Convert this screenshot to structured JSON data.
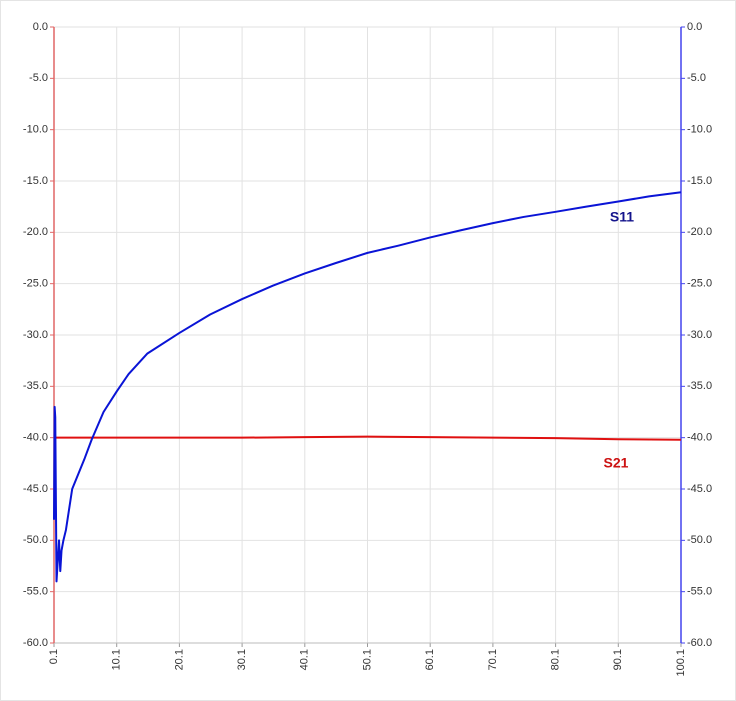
{
  "chart_data": {
    "type": "line",
    "series": [
      {
        "name": "S11",
        "color": "#0a14d6",
        "label_color": "#14148c",
        "axis": "y2",
        "x": [
          0.1,
          0.2,
          0.3,
          0.5,
          0.7,
          0.9,
          1.1,
          1.3,
          1.6,
          2,
          2.5,
          3,
          4,
          5,
          6.1,
          8,
          10.1,
          12,
          15,
          20.1,
          25,
          30.1,
          35,
          40.1,
          45,
          50.1,
          55,
          60.1,
          65,
          70.1,
          75,
          80.1,
          85,
          90.1,
          95,
          100.1
        ],
        "values": [
          -48,
          -37,
          -38,
          -54,
          -52,
          -50,
          -53,
          -51,
          -50,
          -49,
          -47,
          -45,
          -43.5,
          -42,
          -40.2,
          -37.5,
          -35.5,
          -33.8,
          -31.8,
          -29.8,
          -28,
          -26.5,
          -25.2,
          -24,
          -23,
          -22,
          -21.3,
          -20.5,
          -19.8,
          -19.1,
          -18.5,
          -18,
          -17.5,
          -17,
          -16.5,
          -16.1
        ]
      },
      {
        "name": "S21",
        "color": "#e01010",
        "label_color": "#cc1111",
        "x": [
          0.1,
          10.1,
          20.1,
          30.1,
          40.1,
          50.1,
          60.1,
          70.1,
          80.1,
          90.1,
          100.1
        ],
        "values": [
          -40,
          -40,
          -40,
          -40,
          -39.95,
          -39.9,
          -39.95,
          -40,
          -40.05,
          -40.15,
          -40.2
        ]
      }
    ],
    "xlim": [
      0.1,
      100.1
    ],
    "xticks": [
      0.1,
      10.1,
      20.1,
      30.1,
      40.1,
      50.1,
      60.1,
      70.1,
      80.1,
      90.1,
      100.1
    ],
    "ylim": [
      -60,
      0
    ],
    "yticks": [
      {
        "value": 0,
        "label": "0.0"
      },
      {
        "value": -5,
        "label": "-5.0"
      },
      {
        "value": -10,
        "label": "-10.0"
      },
      {
        "value": -15,
        "label": "-15.0"
      },
      {
        "value": -20,
        "label": "-20.0"
      },
      {
        "value": -25,
        "label": "-25.0"
      },
      {
        "value": -30,
        "label": "-30.0"
      },
      {
        "value": -35,
        "label": "-35.0"
      },
      {
        "value": -40,
        "label": "-40.0"
      },
      {
        "value": -45,
        "label": "-45.0"
      },
      {
        "value": -50,
        "label": "-50.0"
      },
      {
        "value": -55,
        "label": "-55.0"
      },
      {
        "value": -60,
        "label": "-60.0"
      }
    ],
    "y2lim": [
      -60,
      0
    ],
    "y2ticks": [
      {
        "value": 0,
        "label": "0.0"
      },
      {
        "value": -5,
        "label": "-5.0"
      },
      {
        "value": -10,
        "label": "-10.0"
      },
      {
        "value": -15,
        "label": "-15.0"
      },
      {
        "value": -20,
        "label": "-20.0"
      },
      {
        "value": -25,
        "label": "-25.0"
      },
      {
        "value": -30,
        "label": "-30.0"
      },
      {
        "value": -35,
        "label": "-35.0"
      },
      {
        "value": -40,
        "label": "-40.0"
      },
      {
        "value": -45,
        "label": "-45.0"
      },
      {
        "value": -50,
        "label": "-50.0"
      },
      {
        "value": -55,
        "label": "-55.0"
      },
      {
        "value": -60,
        "label": "-60.0"
      }
    ],
    "grid": true,
    "y_axis_color": "#e06666",
    "y2_axis_color": "#4444ee"
  }
}
